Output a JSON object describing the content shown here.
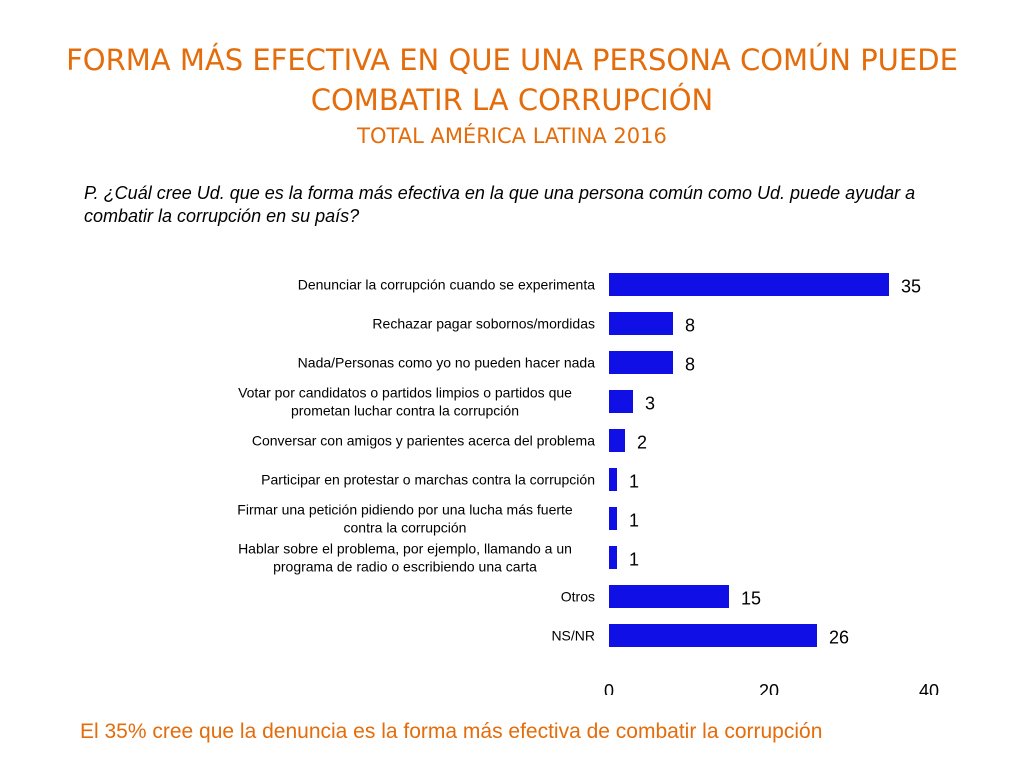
{
  "slide": {
    "title": "FORMA MÁS EFECTIVA EN QUE UNA PERSONA COMÚN PUEDE COMBATIR LA CORRUPCIÓN",
    "subtitle": "TOTAL AMÉRICA LATINA 2016",
    "question": "P. ¿Cuál cree Ud. que es la forma más efectiva en la que una persona común como Ud. puede ayudar a combatir la corrupción en su país?",
    "footer": "El 35% cree que la denuncia es la forma más efectiva de combatir la corrupción"
  },
  "colors": {
    "title": "#e46c0a",
    "bar": "#0f0fe6",
    "text": "#000000"
  },
  "chart_data": {
    "type": "bar",
    "orientation": "horizontal",
    "categories": [
      [
        "Denunciar la corrupción cuando se experimenta"
      ],
      [
        "Rechazar pagar sobornos/mordidas"
      ],
      [
        "Nada/Personas como yo no pueden hacer nada"
      ],
      [
        "Votar por candidatos o partidos limpios o partidos que",
        "prometan luchar contra la corrupción"
      ],
      [
        "Conversar con amigos y parientes acerca del problema"
      ],
      [
        "Participar en protestar o marchas contra la corrupción"
      ],
      [
        "Firmar una petición pidiendo por una lucha más fuerte",
        "contra la corrupción"
      ],
      [
        "Hablar sobre el problema, por ejemplo, llamando a un",
        "programa de radio o escribiendo una carta"
      ],
      [
        "Otros"
      ],
      [
        "NS/NR"
      ]
    ],
    "values": [
      35,
      8,
      8,
      3,
      2,
      1,
      1,
      1,
      15,
      26
    ],
    "xlim": [
      0,
      40
    ],
    "xticks": [
      "0",
      "20",
      "40"
    ],
    "grid": false,
    "legend": "none"
  }
}
